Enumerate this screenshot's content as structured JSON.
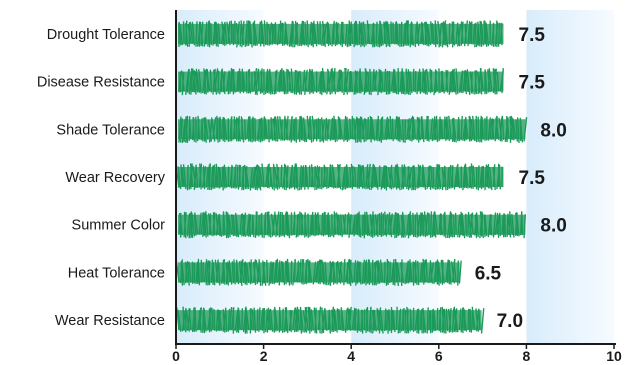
{
  "chart_data": {
    "type": "bar",
    "orientation": "horizontal",
    "categories": [
      "Drought Tolerance",
      "Disease Resistance",
      "Shade Tolerance",
      "Wear Recovery",
      "Summer Color",
      "Heat Tolerance",
      "Wear Resistance"
    ],
    "values": [
      7.5,
      7.5,
      8.0,
      7.5,
      8.0,
      6.5,
      7.0
    ],
    "value_labels": [
      "7.5",
      "7.5",
      "8.0",
      "7.5",
      "8.0",
      "6.5",
      "7.0"
    ],
    "xlim": [
      0,
      10
    ],
    "xticks": [
      "0",
      "2",
      "4",
      "6",
      "8",
      "10"
    ],
    "title": "",
    "xlabel": "",
    "ylabel": "",
    "grid": "alternating background bands",
    "legend": "none",
    "colors": {
      "bar": "#1b9a59",
      "band_light": "#e4f2fc",
      "band_white": "#ffffff",
      "axis": "#1a1a1a"
    }
  }
}
